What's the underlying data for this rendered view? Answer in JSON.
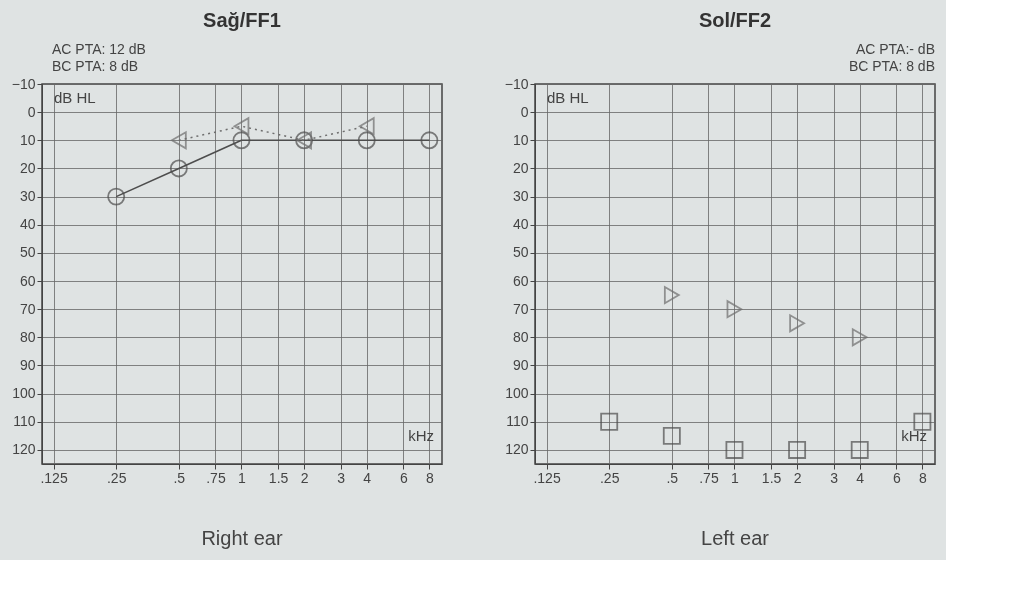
{
  "chart_data": [
    {
      "type": "line",
      "title": "Sağ/FF1",
      "ylabel": "dB HL",
      "xlabel": "kHz",
      "annotations": [
        "AC PTA: 12 dB",
        "BC PTA: 8 dB",
        "Right ear"
      ],
      "log": "x",
      "grid": true,
      "xlim": [
        0.11,
        9.2
      ],
      "ylim": [
        125,
        -10
      ],
      "xticks": [
        {
          "value": 0.125,
          "label": ".125"
        },
        {
          "value": 0.25,
          "label": ".25"
        },
        {
          "value": 0.5,
          "label": ".5"
        },
        {
          "value": 0.75,
          "label": ".75"
        },
        1,
        {
          "value": 1.5,
          "label": "1.5"
        },
        2,
        3,
        4,
        6,
        8
      ],
      "yticks": [
        -10,
        0,
        10,
        20,
        30,
        40,
        50,
        60,
        70,
        80,
        90,
        100,
        110,
        120
      ],
      "series": [
        {
          "marker": "circle",
          "line_style": "solid",
          "color": "#4d4d4d",
          "x": [
            0.25,
            0.5,
            1,
            2,
            4,
            8
          ],
          "values": [
            30,
            20,
            10,
            10,
            10,
            10
          ]
        },
        {
          "marker": "triangle",
          "line_style": "dotted",
          "color": "#6e6e6e",
          "x": [
            0.5,
            1,
            2,
            4
          ],
          "values": [
            10,
            5,
            10,
            5
          ]
        }
      ]
    },
    {
      "type": "scatter",
      "title": "Sol/FF2",
      "ylabel": "dB HL",
      "xlabel": "kHz",
      "annotations": [
        "AC PTA:- dB",
        "BC PTA: 8 dB",
        "Left ear"
      ],
      "log": "x",
      "grid": true,
      "xlim": [
        0.11,
        9.2
      ],
      "ylim": [
        125,
        -10
      ],
      "xticks": [
        {
          "value": 0.125,
          "label": ".125"
        },
        {
          "value": 0.25,
          "label": ".25"
        },
        {
          "value": 0.5,
          "label": ".5"
        },
        {
          "value": 0.75,
          "label": ".75"
        },
        1,
        {
          "value": 1.5,
          "label": "1.5"
        },
        2,
        3,
        4,
        6,
        8
      ],
      "yticks": [
        -10,
        0,
        10,
        20,
        30,
        40,
        50,
        60,
        70,
        80,
        90,
        100,
        110,
        120
      ],
      "series": [
        {
          "marker": "square",
          "color": "#4d4d4d",
          "x": [
            0.25,
            0.5,
            1,
            2,
            4,
            8
          ],
          "values": [
            110,
            115,
            120,
            120,
            120,
            110
          ]
        },
        {
          "marker": "triangle",
          "color": "#6e6e6e",
          "x": [
            0.5,
            1,
            2,
            4
          ],
          "values": [
            65,
            70,
            75,
            80
          ]
        }
      ]
    }
  ]
}
